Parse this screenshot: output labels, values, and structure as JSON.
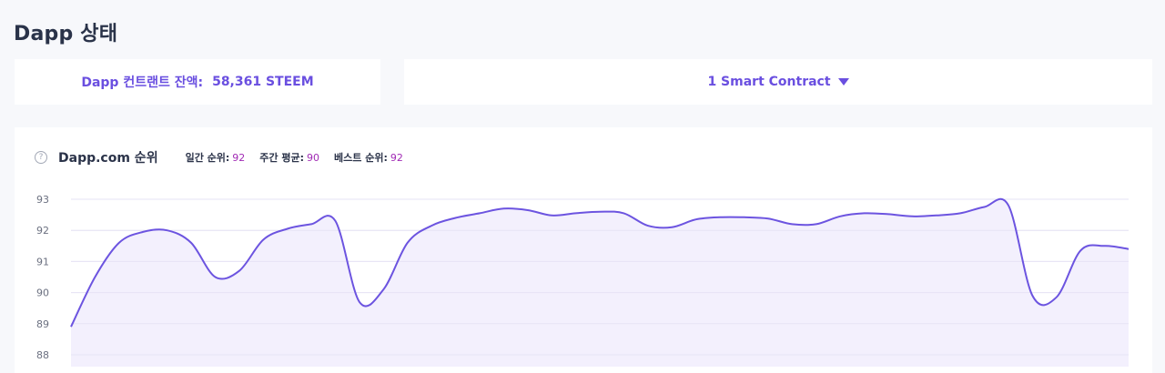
{
  "page_title": "Dapp 상태",
  "balance": {
    "label": "Dapp 컨트랜트 잔액:",
    "value": "58,361 STEEM"
  },
  "contract_selector": {
    "label": "1 Smart Contract",
    "icon": "caret-down-icon"
  },
  "rank": {
    "title": "Dapp.com 순위",
    "stats": [
      {
        "label": "일간 순위:",
        "value": "92"
      },
      {
        "label": "주간 평균:",
        "value": "90"
      },
      {
        "label": "베스트 순위:",
        "value": "92"
      }
    ]
  },
  "colors": {
    "accent": "#6a4fe0",
    "line": "#6c54e0",
    "area": "#f3f0fd",
    "stat_value": "#a12bb5"
  },
  "chart_data": {
    "type": "area",
    "title": "Dapp.com 순위",
    "xlabel": "",
    "ylabel": "",
    "ylim": [
      88,
      93
    ],
    "yticks": [
      93,
      92,
      91,
      90,
      89,
      88
    ],
    "grid": true,
    "series": [
      {
        "values": [
          88.9,
          90.5,
          91.6,
          91.95,
          92.0,
          91.6,
          90.5,
          90.7,
          91.7,
          92.05,
          92.2,
          92.3,
          89.7,
          90.1,
          91.6,
          92.15,
          92.4,
          92.55,
          92.7,
          92.65,
          92.48,
          92.55,
          92.6,
          92.55,
          92.15,
          92.1,
          92.35,
          92.42,
          92.42,
          92.38,
          92.2,
          92.2,
          92.45,
          92.55,
          92.52,
          92.45,
          92.48,
          92.55,
          92.75,
          92.8,
          89.9,
          89.85,
          91.35,
          91.5,
          91.4
        ]
      }
    ]
  }
}
